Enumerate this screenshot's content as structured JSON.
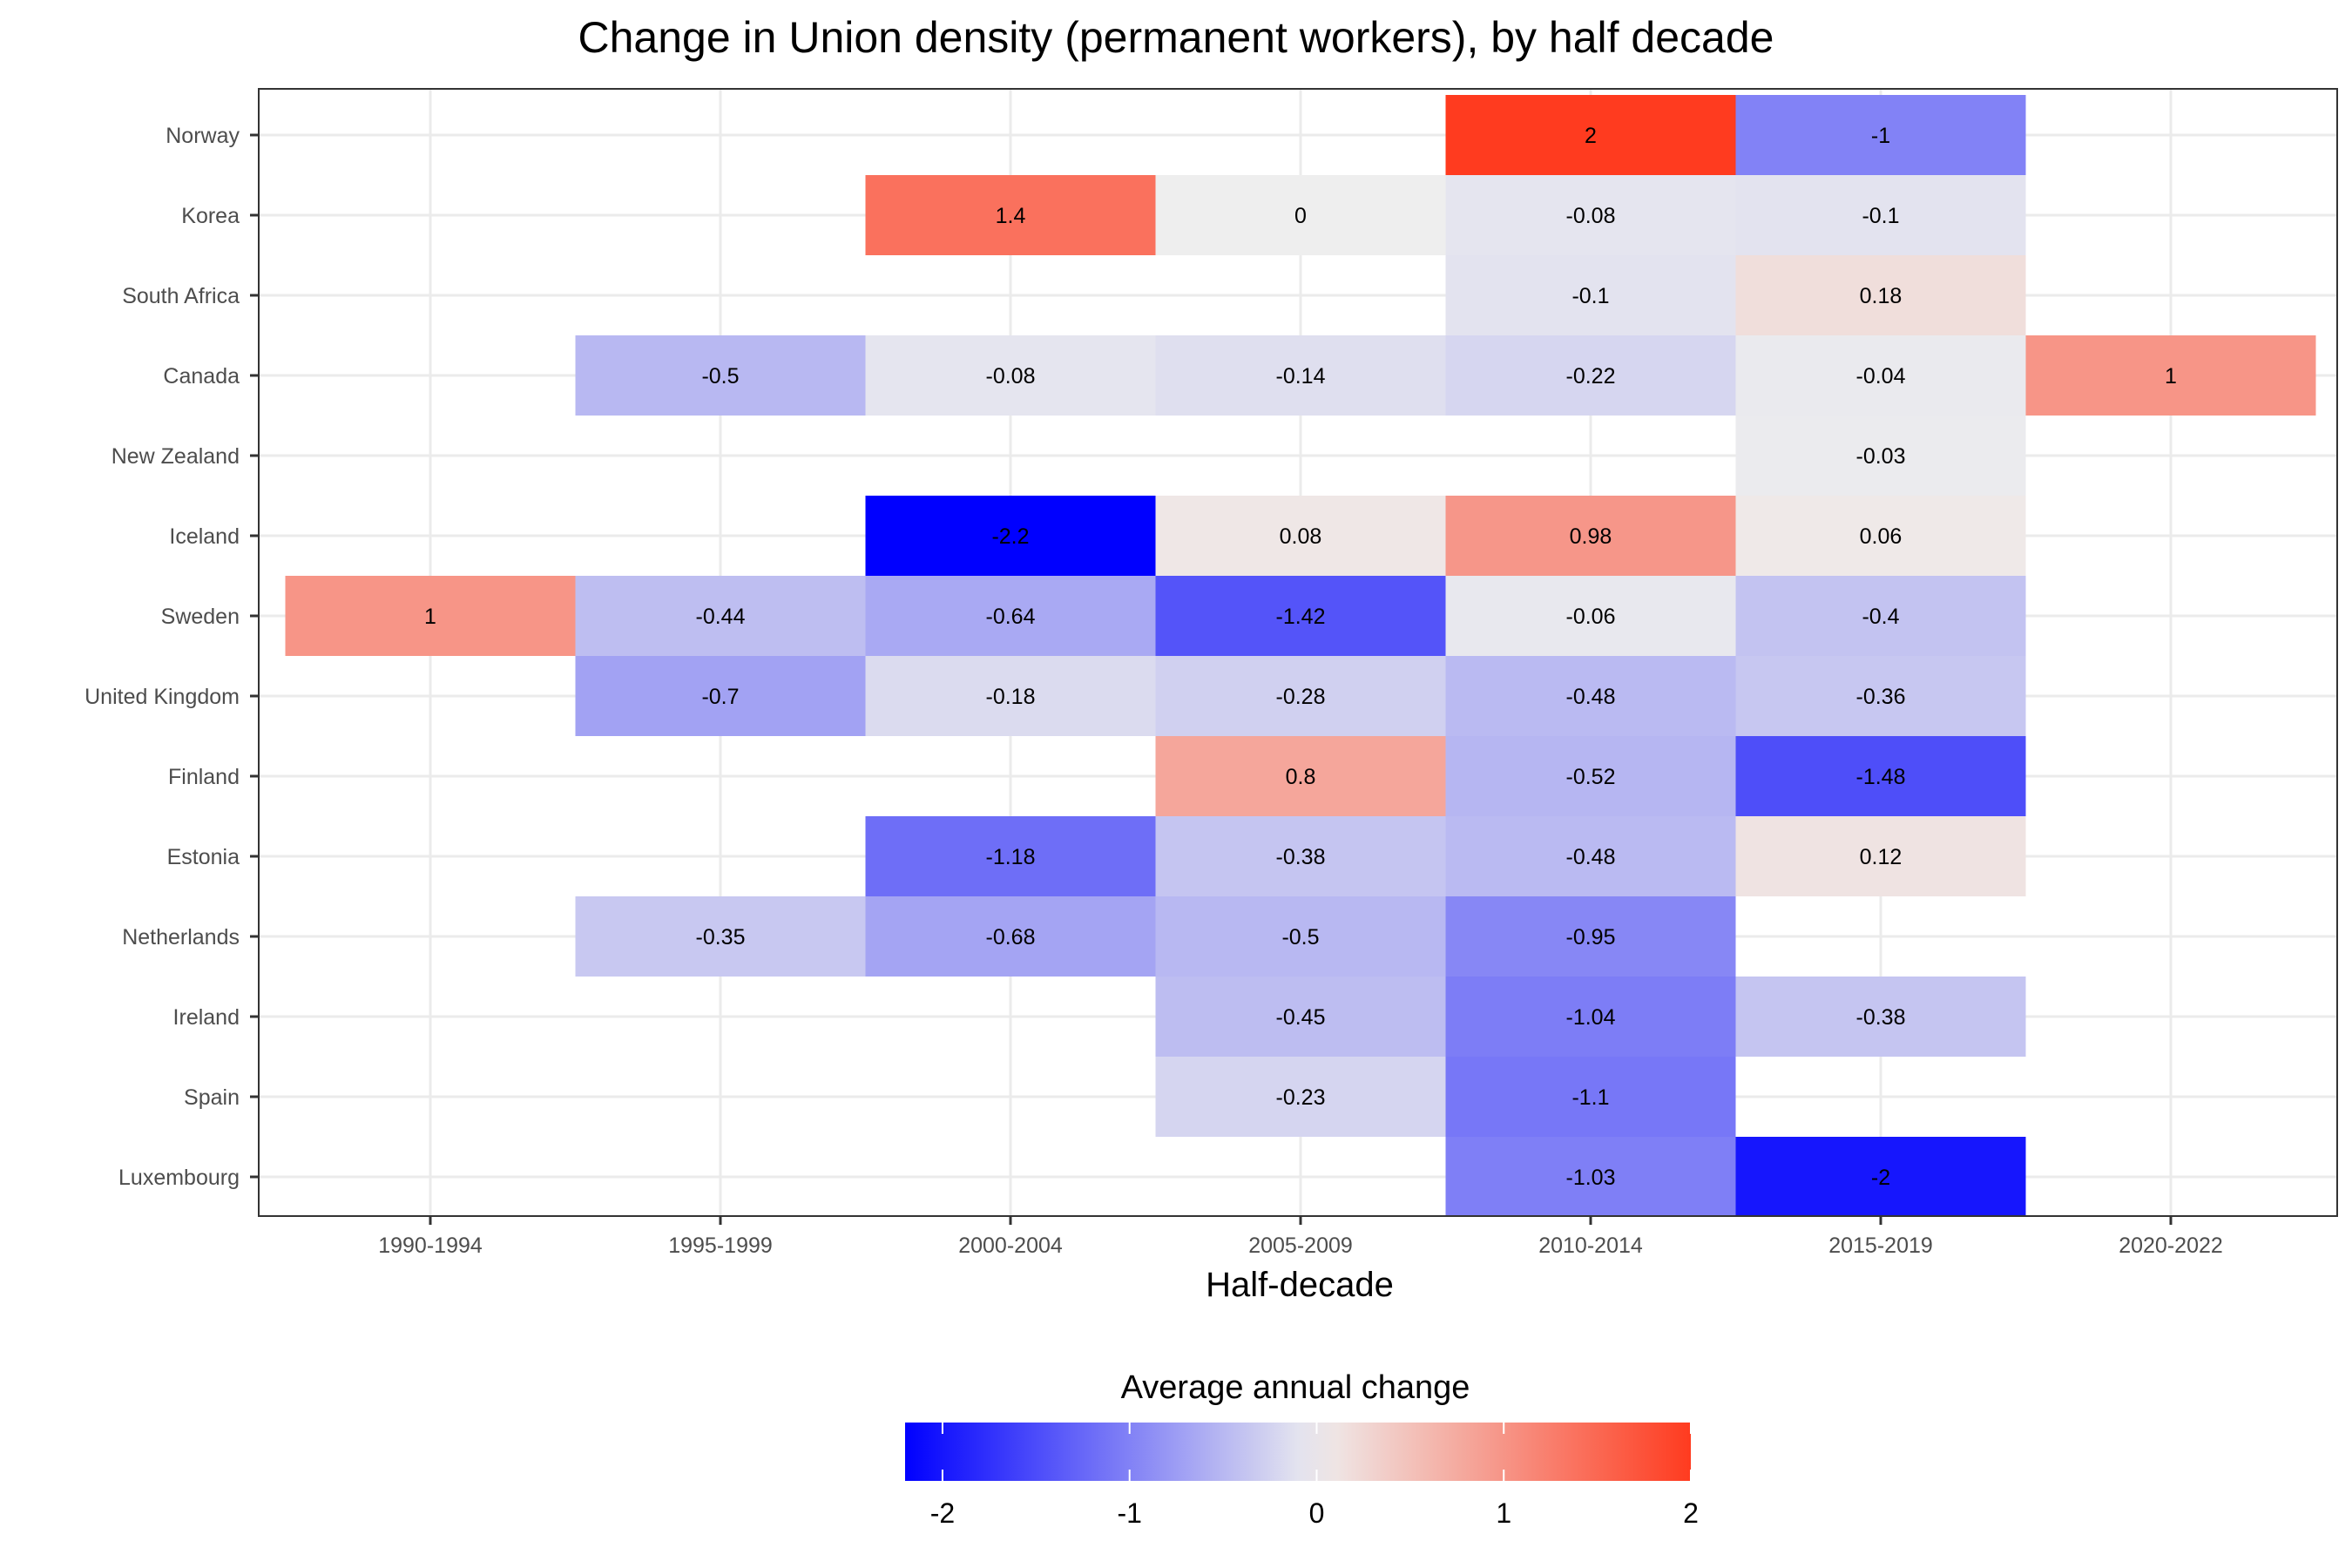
{
  "chart_data": {
    "type": "heatmap",
    "title": "Change in Union density (permanent workers), by half decade",
    "xlabel": "Half-decade",
    "ylabel": "",
    "x_categories": [
      "1990-1994",
      "1995-1999",
      "2000-2004",
      "2005-2009",
      "2010-2014",
      "2015-2019",
      "2020-2022"
    ],
    "y_categories": [
      "Norway",
      "Korea",
      "South Africa",
      "Canada",
      "New Zealand",
      "Iceland",
      "Sweden",
      "United Kingdom",
      "Finland",
      "Estonia",
      "Netherlands",
      "Ireland",
      "Spain",
      "Luxembourg"
    ],
    "cells": [
      {
        "country": "Norway",
        "period": "2010-2014",
        "value": 2,
        "label": "2"
      },
      {
        "country": "Norway",
        "period": "2015-2019",
        "value": -1,
        "label": "-1"
      },
      {
        "country": "Korea",
        "period": "2000-2004",
        "value": 1.4,
        "label": "1.4"
      },
      {
        "country": "Korea",
        "period": "2005-2009",
        "value": 0,
        "label": "0"
      },
      {
        "country": "Korea",
        "period": "2010-2014",
        "value": -0.08,
        "label": "-0.08"
      },
      {
        "country": "Korea",
        "period": "2015-2019",
        "value": -0.1,
        "label": "-0.1"
      },
      {
        "country": "South Africa",
        "period": "2010-2014",
        "value": -0.1,
        "label": "-0.1"
      },
      {
        "country": "South Africa",
        "period": "2015-2019",
        "value": 0.18,
        "label": "0.18"
      },
      {
        "country": "Canada",
        "period": "1995-1999",
        "value": -0.5,
        "label": "-0.5"
      },
      {
        "country": "Canada",
        "period": "2000-2004",
        "value": -0.08,
        "label": "-0.08"
      },
      {
        "country": "Canada",
        "period": "2005-2009",
        "value": -0.14,
        "label": "-0.14"
      },
      {
        "country": "Canada",
        "period": "2010-2014",
        "value": -0.22,
        "label": "-0.22"
      },
      {
        "country": "Canada",
        "period": "2015-2019",
        "value": -0.04,
        "label": "-0.04"
      },
      {
        "country": "Canada",
        "period": "2020-2022",
        "value": 1,
        "label": "1"
      },
      {
        "country": "New Zealand",
        "period": "2015-2019",
        "value": -0.03,
        "label": "-0.03"
      },
      {
        "country": "Iceland",
        "period": "2000-2004",
        "value": -2.2,
        "label": "-2.2"
      },
      {
        "country": "Iceland",
        "period": "2005-2009",
        "value": 0.08,
        "label": "0.08"
      },
      {
        "country": "Iceland",
        "period": "2010-2014",
        "value": 0.98,
        "label": "0.98"
      },
      {
        "country": "Iceland",
        "period": "2015-2019",
        "value": 0.06,
        "label": "0.06"
      },
      {
        "country": "Sweden",
        "period": "1990-1994",
        "value": 1,
        "label": "1"
      },
      {
        "country": "Sweden",
        "period": "1995-1999",
        "value": -0.44,
        "label": "-0.44"
      },
      {
        "country": "Sweden",
        "period": "2000-2004",
        "value": -0.64,
        "label": "-0.64"
      },
      {
        "country": "Sweden",
        "period": "2005-2009",
        "value": -1.42,
        "label": "-1.42"
      },
      {
        "country": "Sweden",
        "period": "2010-2014",
        "value": -0.06,
        "label": "-0.06"
      },
      {
        "country": "Sweden",
        "period": "2015-2019",
        "value": -0.4,
        "label": "-0.4"
      },
      {
        "country": "United Kingdom",
        "period": "1995-1999",
        "value": -0.7,
        "label": "-0.7"
      },
      {
        "country": "United Kingdom",
        "period": "2000-2004",
        "value": -0.18,
        "label": "-0.18"
      },
      {
        "country": "United Kingdom",
        "period": "2005-2009",
        "value": -0.28,
        "label": "-0.28"
      },
      {
        "country": "United Kingdom",
        "period": "2010-2014",
        "value": -0.48,
        "label": "-0.48"
      },
      {
        "country": "United Kingdom",
        "period": "2015-2019",
        "value": -0.36,
        "label": "-0.36"
      },
      {
        "country": "Finland",
        "period": "2005-2009",
        "value": 0.8,
        "label": "0.8"
      },
      {
        "country": "Finland",
        "period": "2010-2014",
        "value": -0.52,
        "label": "-0.52"
      },
      {
        "country": "Finland",
        "period": "2015-2019",
        "value": -1.48,
        "label": "-1.48"
      },
      {
        "country": "Estonia",
        "period": "2000-2004",
        "value": -1.18,
        "label": "-1.18"
      },
      {
        "country": "Estonia",
        "period": "2005-2009",
        "value": -0.38,
        "label": "-0.38"
      },
      {
        "country": "Estonia",
        "period": "2010-2014",
        "value": -0.48,
        "label": "-0.48"
      },
      {
        "country": "Estonia",
        "period": "2015-2019",
        "value": 0.12,
        "label": "0.12"
      },
      {
        "country": "Netherlands",
        "period": "1995-1999",
        "value": -0.35,
        "label": "-0.35"
      },
      {
        "country": "Netherlands",
        "period": "2000-2004",
        "value": -0.68,
        "label": "-0.68"
      },
      {
        "country": "Netherlands",
        "period": "2005-2009",
        "value": -0.5,
        "label": "-0.5"
      },
      {
        "country": "Netherlands",
        "period": "2010-2014",
        "value": -0.95,
        "label": "-0.95"
      },
      {
        "country": "Ireland",
        "period": "2005-2009",
        "value": -0.45,
        "label": "-0.45"
      },
      {
        "country": "Ireland",
        "period": "2010-2014",
        "value": -1.04,
        "label": "-1.04"
      },
      {
        "country": "Ireland",
        "period": "2015-2019",
        "value": -0.38,
        "label": "-0.38"
      },
      {
        "country": "Spain",
        "period": "2005-2009",
        "value": -0.23,
        "label": "-0.23"
      },
      {
        "country": "Spain",
        "period": "2010-2014",
        "value": -1.1,
        "label": "-1.1"
      },
      {
        "country": "Luxembourg",
        "period": "2010-2014",
        "value": -1.03,
        "label": "-1.03"
      },
      {
        "country": "Luxembourg",
        "period": "2015-2019",
        "value": -2,
        "label": "-2"
      }
    ],
    "color_scale": {
      "title": "Average annual change",
      "min": -2.2,
      "max": 2,
      "midpoint": 0,
      "low_color": "#0000ff",
      "mid_color": "#eeeeee",
      "high_color": "#ff3b1f",
      "ticks": [
        -2,
        -1,
        0,
        1,
        2
      ]
    },
    "grid": true,
    "legend_position": "bottom"
  }
}
